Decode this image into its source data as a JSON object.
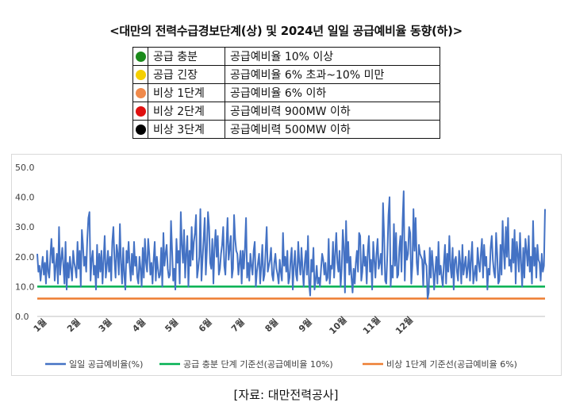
{
  "title": "<대만의 전력수급경보단계(상) 및 2024년 일일 공급예비율 동향(하)>",
  "alert_levels": [
    {
      "color": "#1a8a1a",
      "icon": "green-circle",
      "level": "공급 충분",
      "condition": "공급예비율 10% 이상"
    },
    {
      "color": "#f5d000",
      "icon": "yellow-circle",
      "level": "공급 긴장",
      "condition": "공급예비율 6% 초과~10% 미만"
    },
    {
      "color": "#f08a4b",
      "icon": "orange-circle",
      "level": "비상 1단계",
      "condition": "공급예비율 6% 이하"
    },
    {
      "color": "#e01010",
      "icon": "red-circle",
      "level": "비상 2단계",
      "condition": "공급예비력 900MW 이하"
    },
    {
      "color": "#000000",
      "icon": "black-circle",
      "level": "비상 3단계",
      "condition": "공급예비력 500MW 이하"
    }
  ],
  "chart_data": {
    "type": "line",
    "x_tick_labels": [
      "1월",
      "2월",
      "3월",
      "4월",
      "5월",
      "6월",
      "7월",
      "8월",
      "9월",
      "10월",
      "11월",
      "12월"
    ],
    "ylim": [
      0,
      50
    ],
    "yticks": [
      "0.0",
      "10.0",
      "20.0",
      "30.0",
      "40.0",
      "50.0"
    ],
    "grid": false,
    "legend_position": "bottom",
    "series": [
      {
        "name": "일일 공급예비율(%)",
        "color": "#4472c4",
        "values": [
          21,
          15,
          17,
          12,
          16,
          20,
          14,
          18,
          11,
          22,
          15,
          13,
          20,
          26,
          18,
          23,
          12,
          17,
          21,
          11,
          30,
          14,
          19,
          23,
          17,
          11,
          25,
          9,
          18,
          13,
          20,
          16,
          12,
          22,
          18,
          16,
          13,
          25,
          16,
          22,
          10,
          29,
          24,
          17,
          20,
          15,
          26,
          33,
          35,
          12,
          19,
          22,
          14,
          17,
          9,
          24,
          13,
          21,
          15,
          22,
          11,
          19,
          27,
          13,
          17,
          22,
          15,
          20,
          12,
          25,
          30,
          19,
          13,
          24,
          21,
          14,
          31,
          18,
          11,
          23,
          14,
          9,
          22,
          18,
          25,
          17,
          12,
          21,
          14,
          25,
          17,
          20,
          13,
          11,
          20,
          16,
          10,
          23,
          13,
          26,
          18,
          15,
          26,
          21,
          14,
          18,
          11,
          19,
          25,
          12,
          20,
          16,
          13,
          14,
          23,
          10,
          28,
          17,
          21,
          24,
          16,
          13,
          14,
          32,
          22,
          12,
          16,
          9,
          26,
          18,
          22,
          11,
          35,
          24,
          18,
          29,
          13,
          21,
          27,
          10,
          22,
          17,
          30,
          19,
          25,
          28,
          34,
          13,
          16,
          20,
          36,
          12,
          19,
          26,
          33,
          14,
          22,
          35,
          30,
          18,
          16,
          26,
          11,
          23,
          29,
          20,
          27,
          14,
          16,
          21,
          24,
          30,
          17,
          14,
          24,
          33,
          19,
          23,
          27,
          13,
          16,
          34,
          26,
          22,
          21,
          14,
          18,
          22,
          11,
          22,
          16,
          23,
          33,
          13,
          18,
          12,
          21,
          17,
          14,
          22,
          25,
          10,
          15,
          18,
          21,
          11,
          17,
          24,
          12,
          14,
          22,
          30,
          15,
          17,
          19,
          23,
          14,
          12,
          18,
          21,
          16,
          14,
          11,
          19,
          15,
          12,
          28,
          17,
          20,
          15,
          22,
          11,
          13,
          19,
          23,
          9,
          17,
          22,
          14,
          12,
          25,
          18,
          14,
          23,
          16,
          10,
          18,
          22,
          14,
          27,
          11,
          7,
          19,
          15,
          23,
          9,
          12,
          17,
          11,
          13,
          10,
          16,
          21,
          19,
          14,
          18,
          12,
          13,
          26,
          11,
          17,
          16,
          25,
          13,
          21,
          28,
          18,
          15,
          22,
          10,
          16,
          29,
          23,
          8,
          32,
          18,
          25,
          14,
          20,
          13,
          8,
          16,
          11,
          18,
          22,
          15,
          28,
          27,
          12,
          15,
          24,
          17,
          20,
          11,
          22,
          27,
          15,
          19,
          9,
          25,
          19,
          13,
          21,
          26,
          16,
          18,
          21,
          14,
          38,
          27,
          12,
          11,
          21,
          34,
          40,
          10,
          17,
          13,
          31,
          17,
          28,
          13,
          14,
          23,
          27,
          15,
          32,
          42,
          12,
          25,
          19,
          21,
          30,
          28,
          11,
          17,
          36,
          22,
          33,
          18,
          14,
          24,
          21,
          20,
          19,
          10,
          22,
          18,
          17,
          6,
          8,
          23,
          13,
          22,
          17,
          9,
          15,
          20,
          11,
          25,
          14,
          17,
          13,
          10,
          18,
          24,
          11,
          21,
          15,
          27,
          17,
          13,
          23,
          9,
          19,
          20,
          15,
          12,
          22,
          18,
          11,
          24,
          14,
          17,
          20,
          13,
          16,
          22,
          12,
          19,
          25,
          11,
          14,
          17,
          12,
          23,
          18,
          15,
          21,
          26,
          13,
          24,
          17,
          20,
          9,
          16,
          14,
          23,
          27,
          19,
          15,
          13,
          28,
          21,
          11,
          12,
          24,
          14,
          32,
          22,
          16,
          30,
          20,
          33,
          17,
          19,
          15,
          26,
          18,
          29,
          11,
          25,
          21,
          15,
          28,
          18,
          10,
          23,
          13,
          26,
          22,
          17,
          27,
          15,
          20,
          11,
          32,
          17,
          23,
          13,
          24,
          19,
          18,
          12,
          21,
          15,
          17,
          36
        ]
      },
      {
        "name": "공급 충분 단계 기준선(공급예비율 10%)",
        "color": "#00b050",
        "value": 10
      },
      {
        "name": "비상 1단계 기준선(공급예비율 6%)",
        "color": "#ed7d31",
        "value": 6
      }
    ]
  },
  "source": "[자료: 대만전력공사]"
}
